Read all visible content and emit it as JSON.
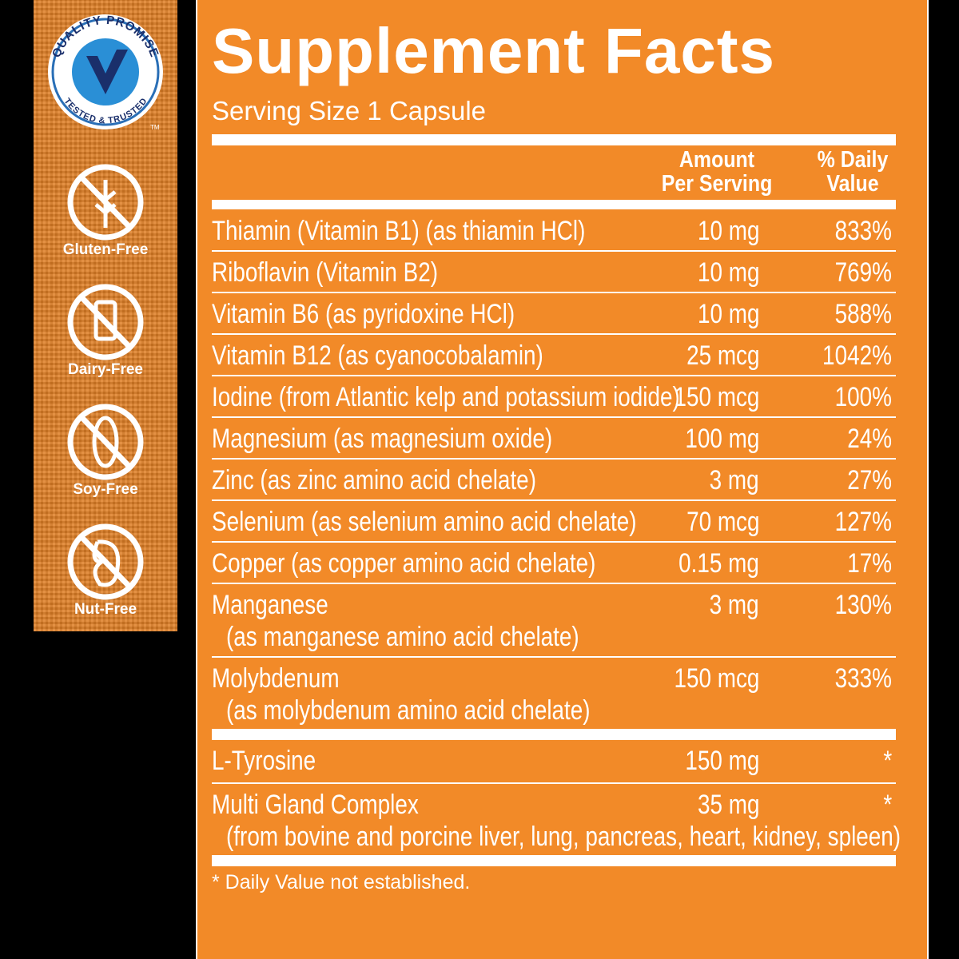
{
  "badge": {
    "top": "QUALITY PROMISE",
    "bottom": "TESTED & TRUSTED",
    "mark": "TM"
  },
  "free_from": [
    "Gluten-Free",
    "Dairy-Free",
    "Soy-Free",
    "Nut-Free"
  ],
  "panel": {
    "title": "Supplement Facts",
    "serving": "Serving Size 1 Capsule",
    "headers": {
      "amount": [
        "Amount",
        "Per Serving"
      ],
      "daily_value": [
        "% Daily",
        "Value"
      ]
    },
    "sections": [
      [
        {
          "name": "Thiamin (Vitamin B1) (as thiamin HCl)",
          "amount": "10 mg",
          "dv": "833%"
        },
        {
          "name": "Riboflavin (Vitamin B2)",
          "amount": "10 mg",
          "dv": "769%"
        },
        {
          "name": "Vitamin B6 (as pyridoxine HCl)",
          "amount": "10 mg",
          "dv": "588%"
        },
        {
          "name": "Vitamin B12 (as cyanocobalamin)",
          "amount": "25 mcg",
          "dv": "1042%"
        },
        {
          "name": "Iodine (from Atlantic kelp and potassium iodide)",
          "amount": "150 mcg",
          "dv": "100%"
        },
        {
          "name": "Magnesium (as magnesium oxide)",
          "amount": "100 mg",
          "dv": "24%"
        },
        {
          "name": "Zinc (as zinc amino acid chelate)",
          "amount": "3 mg",
          "dv": "27%"
        },
        {
          "name": "Selenium (as selenium amino acid chelate)",
          "amount": "70 mcg",
          "dv": "127%"
        },
        {
          "name": "Copper (as copper amino acid chelate)",
          "amount": "0.15 mg",
          "dv": "17%"
        },
        {
          "name": "Manganese",
          "note": "(as manganese amino acid chelate)",
          "amount": "3 mg",
          "dv": "130%"
        },
        {
          "name": "Molybdenum",
          "note": "(as molybdenum amino acid chelate)",
          "amount": "150 mcg",
          "dv": "333%"
        }
      ],
      [
        {
          "name": "L-Tyrosine",
          "amount": "150 mg",
          "dv": "*"
        },
        {
          "name": "Multi Gland Complex",
          "note": "(from bovine and porcine liver, lung, pancreas, heart, kidney, spleen)",
          "amount": "35 mg",
          "dv": "*"
        }
      ]
    ],
    "footnote": "* Daily Value not established."
  }
}
